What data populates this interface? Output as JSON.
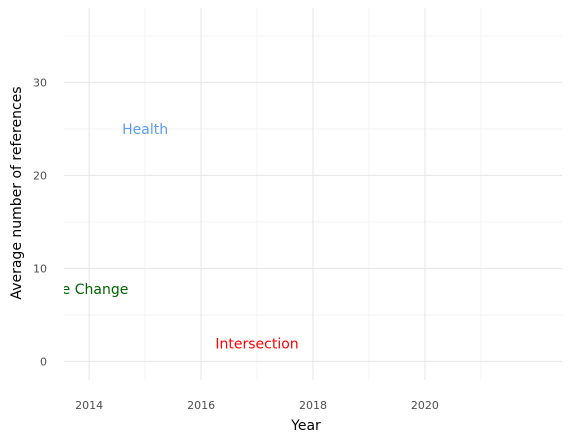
{
  "chart_data": {
    "type": "scatter",
    "title": "",
    "xlabel": "Year",
    "ylabel": "Average number of references",
    "xlim": [
      2013.55,
      2022.45
    ],
    "ylim": [
      -2,
      38
    ],
    "x_ticks": [
      2014,
      2016,
      2018,
      2020
    ],
    "y_ticks": [
      0,
      10,
      20,
      30
    ],
    "x_tick_labels": [
      "2014",
      "2016",
      "2018",
      "2020"
    ],
    "y_tick_labels": [
      "0",
      "10",
      "20",
      "30"
    ],
    "grid": true,
    "legend": "none",
    "annotations": [
      {
        "text": "Health",
        "x": 2015.0,
        "y": 25.0,
        "color": "#5b9bf0"
      },
      {
        "text": "Climate Change",
        "x": 2013.7,
        "y": 7.8,
        "color": "#006400"
      },
      {
        "text": "Intersection",
        "x": 2017.0,
        "y": 1.9,
        "color": "#ff0000"
      }
    ]
  }
}
